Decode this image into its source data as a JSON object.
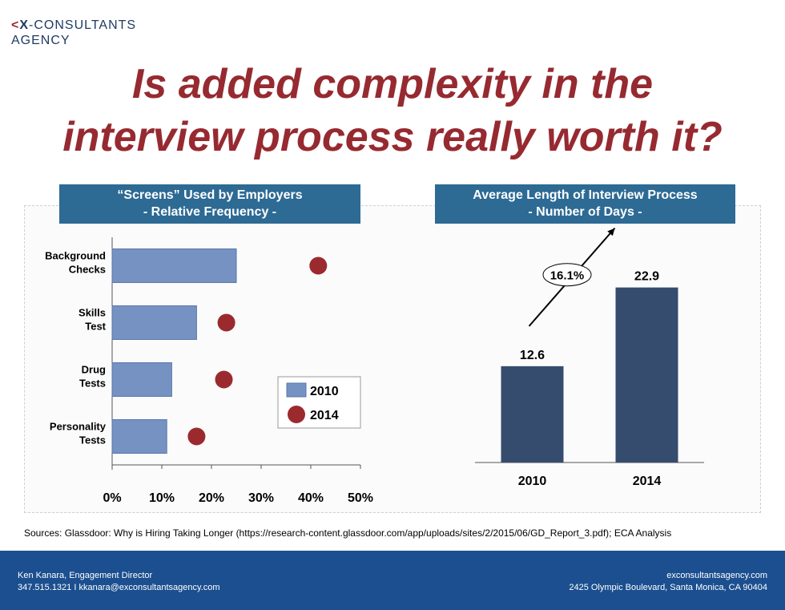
{
  "logo": {
    "mark": "X",
    "line1_rest": "-CONSULTANTS",
    "line2": "AGENCY"
  },
  "title": {
    "line1": "Is added complexity in the",
    "line2": "interview process really worth it?"
  },
  "colors": {
    "title": "#962a30",
    "bar2010": "#7592c2",
    "dot2014": "#9b2a2f",
    "bar_dark": "#354c6e",
    "header_bg": "#2d6a94",
    "footer_bg": "#1b4f8f"
  },
  "chart_data": [
    {
      "type": "bar",
      "title": "“Screens” Used by Employers",
      "subtitle": "- Relative Frequency -",
      "categories": [
        [
          "Background",
          "Checks"
        ],
        [
          "Skills",
          "Test"
        ],
        [
          "Drug",
          "Tests"
        ],
        [
          "Personality",
          "Tests"
        ]
      ],
      "series": [
        {
          "name": "2010",
          "values": [
            25,
            17,
            12,
            11
          ],
          "style": "bar"
        },
        {
          "name": "2014",
          "values": [
            41.5,
            23,
            22.5,
            17
          ],
          "style": "dot"
        }
      ],
      "xlim": [
        0,
        50
      ],
      "xticks": [
        "0%",
        "10%",
        "20%",
        "30%",
        "40%",
        "50%"
      ],
      "legend": "inside-right"
    },
    {
      "type": "bar",
      "title": "Average Length of Interview Process",
      "subtitle": "- Number of Days -",
      "categories": [
        "2010",
        "2014"
      ],
      "values": [
        12.6,
        22.9
      ],
      "data_labels": [
        "12.6",
        "22.9"
      ],
      "annotation": "16.1%",
      "ylim": [
        0,
        28
      ]
    }
  ],
  "sources": "Sources: Glassdoor: Why is Hiring Taking Longer (https://research-content.glassdoor.com/app/uploads/sites/2/2015/06/GD_Report_3.pdf); ECA Analysis",
  "footer": {
    "name": "Ken Kanara, Engagement Director",
    "contact": "347.515.1321  I  kkanara@exconsultantsagency.com",
    "website": "exconsultantsagency.com",
    "address": "2425 Olympic Boulevard, Santa Monica, CA 90404"
  }
}
